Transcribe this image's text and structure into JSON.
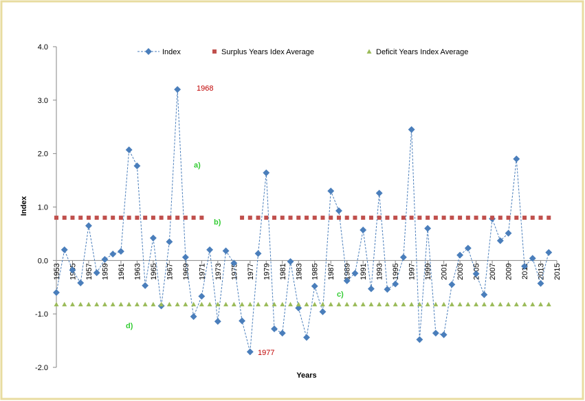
{
  "chart_data": {
    "type": "line",
    "x": [
      1953,
      1954,
      1955,
      1956,
      1957,
      1958,
      1959,
      1960,
      1961,
      1962,
      1963,
      1964,
      1965,
      1966,
      1967,
      1968,
      1969,
      1970,
      1971,
      1972,
      1973,
      1974,
      1975,
      1976,
      1977,
      1978,
      1979,
      1980,
      1981,
      1982,
      1983,
      1984,
      1985,
      1986,
      1987,
      1988,
      1989,
      1990,
      1991,
      1992,
      1993,
      1994,
      1995,
      1996,
      1997,
      1998,
      1999,
      2000,
      2001,
      2002,
      2003,
      2004,
      2005,
      2006,
      2007,
      2008,
      2009,
      2010,
      2011,
      2012,
      2013,
      2014
    ],
    "series": [
      {
        "name": "Index",
        "color": "#4a7ebb",
        "values": [
          -0.6,
          0.2,
          -0.18,
          -0.42,
          0.65,
          -0.23,
          0.02,
          0.12,
          0.17,
          2.07,
          1.77,
          -0.47,
          0.42,
          -0.85,
          0.35,
          3.2,
          0.06,
          -1.05,
          -0.67,
          0.2,
          -1.14,
          0.18,
          -0.05,
          -1.13,
          -1.71,
          0.13,
          1.64,
          -1.28,
          -1.36,
          -0.02,
          -0.89,
          -1.44,
          -0.48,
          -0.96,
          1.3,
          0.93,
          -0.38,
          -0.24,
          0.57,
          -0.53,
          1.26,
          -0.54,
          -0.44,
          0.06,
          2.45,
          -1.48,
          0.6,
          -1.36,
          -1.39,
          -0.45,
          0.1,
          0.23,
          -0.25,
          -0.64,
          0.78,
          0.37,
          0.51,
          1.9,
          -0.11,
          0.04,
          -0.43,
          0.15
        ]
      },
      {
        "name": "Surplus Years Idex Average",
        "color": "#c0504d",
        "values": [
          0.8,
          0.8,
          0.8,
          0.8,
          0.8,
          0.8,
          0.8,
          0.8,
          0.8,
          0.8,
          0.8,
          0.8,
          0.8,
          0.8,
          0.8,
          0.8,
          0.8,
          0.8,
          0.8,
          null,
          null,
          null,
          null,
          0.8,
          0.8,
          0.8,
          0.8,
          0.8,
          0.8,
          0.8,
          0.8,
          0.8,
          0.8,
          0.8,
          0.8,
          0.8,
          0.8,
          0.8,
          0.8,
          0.8,
          0.8,
          0.8,
          0.8,
          0.8,
          0.8,
          0.8,
          0.8,
          0.8,
          0.8,
          0.8,
          0.8,
          0.8,
          0.8,
          0.8,
          0.8,
          0.8,
          0.8,
          0.8,
          0.8,
          0.8,
          0.8,
          0.8
        ]
      },
      {
        "name": "Deficit Years Index Average",
        "color": "#9bbb59",
        "values": [
          -0.82,
          -0.82,
          -0.82,
          -0.82,
          -0.82,
          -0.82,
          -0.82,
          -0.82,
          -0.82,
          -0.82,
          -0.82,
          -0.82,
          -0.82,
          -0.82,
          -0.82,
          -0.82,
          -0.82,
          -0.82,
          -0.82,
          -0.82,
          -0.82,
          -0.82,
          -0.82,
          -0.82,
          -0.82,
          -0.82,
          -0.82,
          -0.82,
          -0.82,
          -0.82,
          -0.82,
          -0.82,
          -0.82,
          -0.82,
          -0.82,
          -0.82,
          -0.82,
          -0.82,
          -0.82,
          -0.82,
          -0.82,
          -0.82,
          -0.82,
          -0.82,
          -0.82,
          -0.82,
          -0.82,
          -0.82,
          -0.82,
          -0.82,
          -0.82,
          -0.82,
          -0.82,
          -0.82,
          -0.82,
          -0.82,
          -0.82,
          -0.82,
          -0.82,
          -0.82,
          -0.82,
          -0.82
        ]
      }
    ],
    "xlabel": "Years",
    "ylabel": "Index",
    "xlim": [
      1953,
      2015
    ],
    "xticks": [
      1953,
      1955,
      1957,
      1959,
      1961,
      1963,
      1965,
      1967,
      1969,
      1971,
      1973,
      1975,
      1977,
      1979,
      1981,
      1983,
      1985,
      1987,
      1989,
      1991,
      1993,
      1995,
      1997,
      1999,
      2001,
      2003,
      2005,
      2007,
      2009,
      2011,
      2013,
      2015
    ],
    "ylim": [
      -2,
      4
    ],
    "yticks": [
      {
        "value": -2,
        "label": "-2.0"
      },
      {
        "value": -1,
        "label": "-1.0"
      },
      {
        "value": 0,
        "label": "0.0"
      },
      {
        "value": 1,
        "label": "1.0"
      },
      {
        "value": 2,
        "label": "2.0"
      },
      {
        "value": 3,
        "label": "3.0"
      },
      {
        "value": 4,
        "label": "4.0"
      }
    ],
    "annotations": [
      "1968",
      "1977",
      "a)",
      "b)",
      "c)",
      "d)"
    ],
    "legend": "top"
  }
}
